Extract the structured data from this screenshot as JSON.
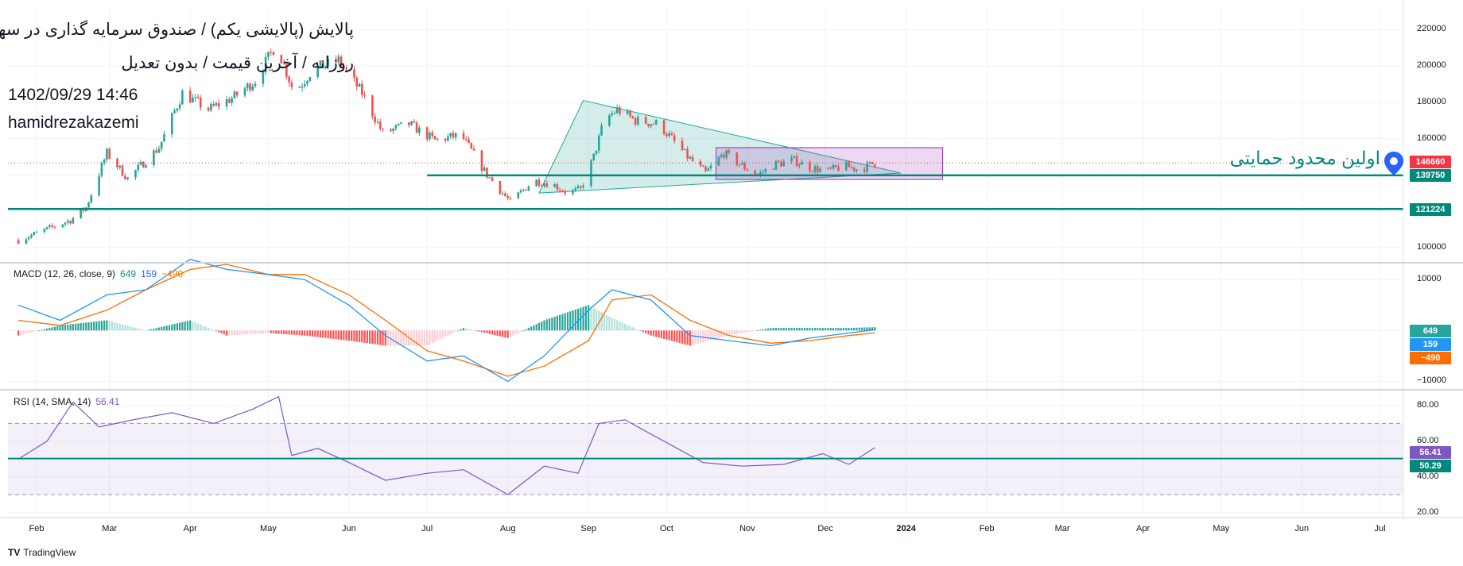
{
  "header": {
    "symbol_line": "پالایش (پالایشی یکم) / صندوق سرمایه گذاری در سهام",
    "settings_line": "روزانه / آخرین قیمت / بدون تعدیل",
    "datetime": "1402/09/29 14:46",
    "author": "hamidrezakazemi"
  },
  "annotation": {
    "support_label": "اولین محدود حمایتی"
  },
  "indicators": {
    "macd": {
      "label": "MACD (12, 26, close, 9)",
      "v1": "649",
      "v2": "159",
      "v3": "−490"
    },
    "rsi": {
      "label": "RSI (14, SMA, 14)",
      "value": "56.41"
    }
  },
  "price_tags": {
    "last": "146660",
    "support1": "139750",
    "support2": "121224",
    "macd_hist": "649",
    "macd_line": "159",
    "macd_signal": "−490",
    "rsi": "56.41",
    "rsi_ma": "50.29"
  },
  "colors": {
    "up": "#26a69a",
    "down": "#ef5350",
    "teal_line": "#00897b",
    "macd": "#2196f3",
    "signal": "#ff6d00",
    "rsi": "#7e57c2",
    "triangle": "#26a69a",
    "box": "#9c27b0"
  },
  "footer": {
    "brand": "TradingView"
  },
  "chart_data": [
    {
      "type": "candlestick",
      "title": "پالایش (پالایشی یکم) / صندوق سرمایه گذاری در سهام",
      "interval": "روزانه",
      "y_axis": {
        "ticks": [
          100000,
          120000,
          140000,
          160000,
          180000,
          200000,
          220000
        ],
        "range": [
          92000,
          232000
        ],
        "side": "right",
        "grid": true
      },
      "x_axis": {
        "labels": [
          "Feb",
          "Mar",
          "Apr",
          "May",
          "Jun",
          "Jul",
          "Aug",
          "Sep",
          "Oct",
          "Nov",
          "Dec",
          "2024",
          "Feb",
          "Mar",
          "Apr",
          "May",
          "Jun",
          "Jul"
        ]
      },
      "close_path": [
        {
          "date": "2023-01-25",
          "close": 104000
        },
        {
          "date": "2023-02-14",
          "close": 115000
        },
        {
          "date": "2023-02-20",
          "close": 122000
        },
        {
          "date": "2023-02-28",
          "close": 152000
        },
        {
          "date": "2023-03-08",
          "close": 138000
        },
        {
          "date": "2023-03-20",
          "close": 155000
        },
        {
          "date": "2023-03-29",
          "close": 185000
        },
        {
          "date": "2023-04-08",
          "close": 176000
        },
        {
          "date": "2023-04-18",
          "close": 183000
        },
        {
          "date": "2023-04-26",
          "close": 192000
        },
        {
          "date": "2023-05-04",
          "close": 212000
        },
        {
          "date": "2023-05-11",
          "close": 185000
        },
        {
          "date": "2023-05-18",
          "close": 198000
        },
        {
          "date": "2023-05-28",
          "close": 203000
        },
        {
          "date": "2023-06-06",
          "close": 185000
        },
        {
          "date": "2023-06-14",
          "close": 163000
        },
        {
          "date": "2023-06-24",
          "close": 168000
        },
        {
          "date": "2023-07-04",
          "close": 159000
        },
        {
          "date": "2023-07-14",
          "close": 162000
        },
        {
          "date": "2023-07-24",
          "close": 140000
        },
        {
          "date": "2023-08-02",
          "close": 125000
        },
        {
          "date": "2023-08-11",
          "close": 137000
        },
        {
          "date": "2023-08-18",
          "close": 135000
        },
        {
          "date": "2023-08-24",
          "close": 130000
        },
        {
          "date": "2023-08-29",
          "close": 132000
        },
        {
          "date": "2023-09-03",
          "close": 150000
        },
        {
          "date": "2023-09-07",
          "close": 170000
        },
        {
          "date": "2023-09-12",
          "close": 176000
        },
        {
          "date": "2023-09-19",
          "close": 170000
        },
        {
          "date": "2023-09-28",
          "close": 168000
        },
        {
          "date": "2023-10-09",
          "close": 150000
        },
        {
          "date": "2023-10-16",
          "close": 141000
        },
        {
          "date": "2023-10-23",
          "close": 152000
        },
        {
          "date": "2023-10-31",
          "close": 144000
        },
        {
          "date": "2023-11-05",
          "close": 140000
        },
        {
          "date": "2023-11-12",
          "close": 146000
        },
        {
          "date": "2023-11-19",
          "close": 148000
        },
        {
          "date": "2023-11-25",
          "close": 144000
        },
        {
          "date": "2023-12-02",
          "close": 142000
        },
        {
          "date": "2023-12-08",
          "close": 145000
        },
        {
          "date": "2023-12-14",
          "close": 143000
        },
        {
          "date": "2023-12-20",
          "close": 146660
        }
      ],
      "levels": [
        {
          "name": "resistance-line",
          "value": 139750
        },
        {
          "name": "support-line",
          "value": 121224
        },
        {
          "name": "last-price",
          "value": 146660
        }
      ],
      "triangle": [
        {
          "date": "2023-08-13",
          "value": 130000
        },
        {
          "date": "2023-08-30",
          "value": 181000
        },
        {
          "date": "2023-12-30",
          "value": 141000
        }
      ],
      "box": {
        "date_from": "2023-10-20",
        "date_to": "2024-01-15",
        "value_from": 137500,
        "value_to": 155000
      }
    },
    {
      "type": "line",
      "title": "MACD (12, 26, close, 9)",
      "y_axis": {
        "ticks": [
          -10000,
          0,
          10000
        ],
        "range": [
          -11500,
          13000
        ]
      },
      "x": [
        "2023-01-25",
        "2023-02-10",
        "2023-02-28",
        "2023-03-15",
        "2023-04-01",
        "2023-04-15",
        "2023-05-01",
        "2023-05-15",
        "2023-06-01",
        "2023-06-15",
        "2023-07-01",
        "2023-07-15",
        "2023-08-01",
        "2023-08-15",
        "2023-09-01",
        "2023-09-10",
        "2023-09-25",
        "2023-10-10",
        "2023-10-25",
        "2023-11-10",
        "2023-11-25",
        "2023-12-10",
        "2023-12-20"
      ],
      "series": [
        {
          "name": "MACD",
          "values": [
            5000,
            2000,
            7000,
            8000,
            14000,
            12000,
            11000,
            10000,
            5000,
            -1000,
            -6000,
            -5000,
            -10000,
            -5000,
            4000,
            8000,
            6000,
            -1000,
            -2000,
            -3000,
            -1500,
            -500,
            159
          ]
        },
        {
          "name": "Signal",
          "values": [
            2000,
            1000,
            4000,
            8000,
            12000,
            13000,
            11000,
            11000,
            7000,
            2000,
            -4000,
            -6000,
            -9000,
            -7000,
            -2000,
            6000,
            7000,
            2000,
            -1000,
            -2500,
            -2000,
            -1000,
            -490
          ]
        },
        {
          "name": "Histogram",
          "values": [
            -1000,
            1000,
            2000,
            0,
            2000,
            -1000,
            -500,
            -1000,
            -2000,
            -3000,
            -3000,
            500,
            -1500,
            2000,
            5000,
            2500,
            -1000,
            -3000,
            -1000,
            500,
            500,
            500,
            649
          ]
        }
      ]
    },
    {
      "type": "line",
      "title": "RSI (14, SMA, 14)",
      "y_axis": {
        "ticks": [
          20,
          40,
          60,
          80
        ],
        "range": [
          18,
          88
        ]
      },
      "bands": {
        "upper": 70,
        "lower": 30
      },
      "x": [
        "2023-01-25",
        "2023-02-05",
        "2023-02-15",
        "2023-02-25",
        "2023-03-10",
        "2023-03-25",
        "2023-04-10",
        "2023-04-25",
        "2023-05-05",
        "2023-05-10",
        "2023-05-20",
        "2023-06-01",
        "2023-06-15",
        "2023-07-01",
        "2023-07-15",
        "2023-08-01",
        "2023-08-15",
        "2023-08-28",
        "2023-09-05",
        "2023-09-15",
        "2023-09-30",
        "2023-10-15",
        "2023-10-30",
        "2023-11-15",
        "2023-11-30",
        "2023-12-10",
        "2023-12-20"
      ],
      "series": [
        {
          "name": "RSI",
          "values": [
            50,
            60,
            82,
            68,
            72,
            76,
            70,
            78,
            85,
            52,
            56,
            48,
            38,
            42,
            44,
            30,
            46,
            42,
            70,
            72,
            60,
            48,
            46,
            47,
            53,
            47,
            56.41
          ]
        },
        {
          "name": "RSI-based MA",
          "values": [
            50,
            50,
            50,
            50,
            50,
            50,
            50,
            50,
            50,
            50,
            50,
            50,
            50,
            50,
            50,
            50,
            50,
            50,
            50,
            50,
            50,
            50,
            50,
            50,
            50,
            50,
            50.29
          ]
        }
      ]
    }
  ]
}
